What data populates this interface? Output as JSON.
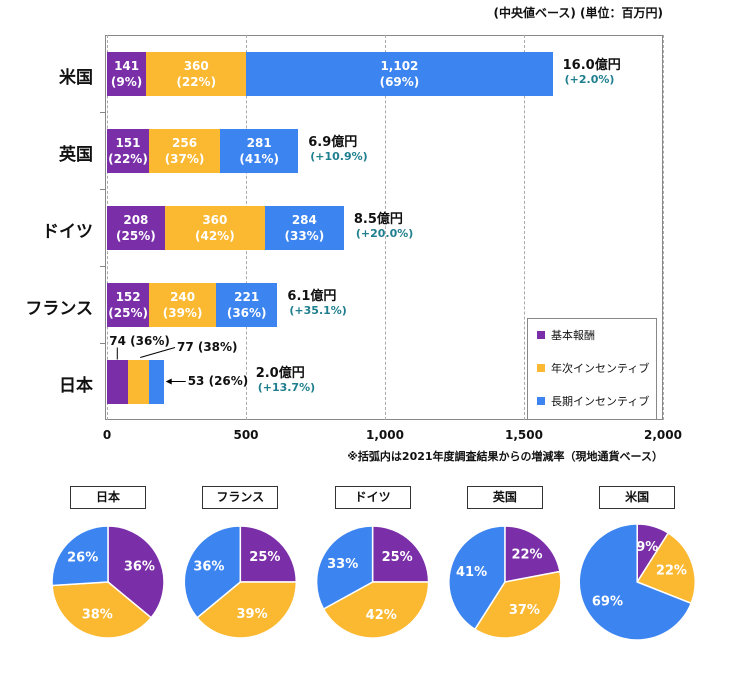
{
  "chart_data": [
    {
      "type": "bar",
      "orientation": "horizontal",
      "stacked": true,
      "subtitle": "(中央値ベース) (単位：百万円)",
      "note": "※括弧内は2021年度調査結果からの増減率（現地通貨ベース）",
      "categories": [
        "米国",
        "英国",
        "ドイツ",
        "フランス",
        "日本"
      ],
      "series": [
        {
          "name": "基本報酬",
          "color": "#7a2ea8",
          "values": [
            141,
            151,
            208,
            152,
            74
          ],
          "value_labels": [
            "141\n(9%)",
            "151\n(22%)",
            "208\n(25%)",
            "152\n(25%)",
            "74 (36%)"
          ]
        },
        {
          "name": "年次インセンティブ",
          "color": "#fbb831",
          "values": [
            360,
            256,
            360,
            240,
            77
          ],
          "value_labels": [
            "360\n(22%)",
            "256\n(37%)",
            "360\n(42%)",
            "240\n(39%)",
            "77 (38%)"
          ]
        },
        {
          "name": "長期インセンティブ",
          "color": "#3c84ef",
          "values": [
            1102,
            281,
            284,
            221,
            53
          ],
          "value_labels": [
            "1,102\n(69%)",
            "281\n(41%)",
            "284\n(33%)",
            "221\n(36%)",
            "53 (26%)"
          ]
        }
      ],
      "total_labels": [
        "16.0億円",
        "6.9億円",
        "8.5億円",
        "6.1億円",
        "2.0億円"
      ],
      "change_labels": [
        "(+2.0%)",
        "(+10.9%)",
        "(+20.0%)",
        "(+35.1%)",
        "(+13.7%)"
      ],
      "change_color": "#1f7f8f",
      "xlim": [
        0,
        2000
      ],
      "xticks": [
        0,
        500,
        {
          "value": 1000,
          "label": "1,000"
        },
        {
          "value": 1500,
          "label": "1,500"
        },
        {
          "value": 2000,
          "label": "2,000"
        }
      ],
      "grid": true,
      "legend": "lower right"
    },
    {
      "type": "pie",
      "title": "日本",
      "values": [
        36,
        38,
        26
      ],
      "value_labels": [
        "36%",
        "38%",
        "26%"
      ],
      "colors": [
        "#7a2ea8",
        "#fbb831",
        "#3c84ef"
      ]
    },
    {
      "type": "pie",
      "title": "フランス",
      "values": [
        25,
        39,
        36
      ],
      "value_labels": [
        "25%",
        "39%",
        "36%"
      ],
      "colors": [
        "#7a2ea8",
        "#fbb831",
        "#3c84ef"
      ]
    },
    {
      "type": "pie",
      "title": "ドイツ",
      "values": [
        25,
        42,
        33
      ],
      "value_labels": [
        "25%",
        "42%",
        "33%"
      ],
      "colors": [
        "#7a2ea8",
        "#fbb831",
        "#3c84ef"
      ]
    },
    {
      "type": "pie",
      "title": "英国",
      "values": [
        22,
        37,
        41
      ],
      "value_labels": [
        "22%",
        "37%",
        "41%"
      ],
      "colors": [
        "#7a2ea8",
        "#fbb831",
        "#3c84ef"
      ]
    },
    {
      "type": "pie",
      "title": "米国",
      "values": [
        9,
        22,
        69
      ],
      "value_labels": [
        "9%",
        "22%",
        "69%"
      ],
      "colors": [
        "#7a2ea8",
        "#fbb831",
        "#3c84ef"
      ]
    }
  ]
}
